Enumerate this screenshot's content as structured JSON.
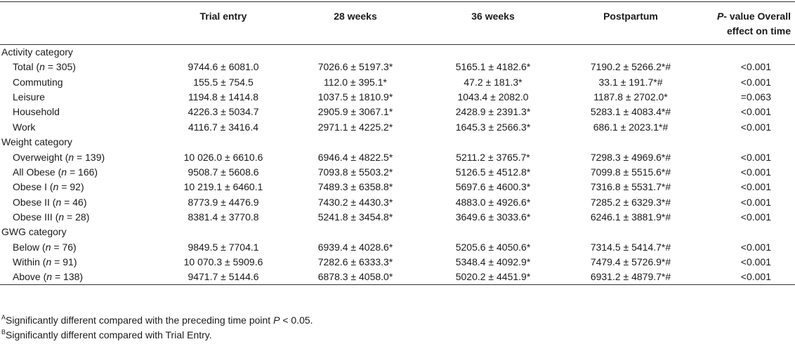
{
  "table": {
    "headers": [
      "",
      "Trial entry",
      "28 weeks",
      "36 weeks",
      "Postpartum",
      "P- value Overall effect on time"
    ],
    "p_header": {
      "italic": "P-",
      "rest": " value Overall effect on time"
    },
    "sections": [
      {
        "category": "Activity category",
        "rows": [
          {
            "label": "Total",
            "n": "305",
            "values": [
              "9744.6 ± 6081.0",
              "7026.6 ± 5197.3*",
              "5165.1 ± 4182.6*",
              "7190.2 ± 5266.2*#"
            ],
            "p": "<0.001"
          },
          {
            "label": "Commuting",
            "n": "",
            "values": [
              "155.5 ± 754.5",
              "112.0 ± 395.1*",
              "47.2 ± 181.3*",
              "33.1 ± 191.7*#"
            ],
            "p": "<0.001"
          },
          {
            "label": "Leisure",
            "n": "",
            "values": [
              "1194.8 ± 1414.8",
              "1037.5 ± 1810.9*",
              "1043.4 ± 2082.0",
              "1187.8 ± 2702.0*"
            ],
            "p": "=0.063"
          },
          {
            "label": "Household",
            "n": "",
            "values": [
              "4226.3 ± 5034.7",
              "2905.9 ± 3067.1*",
              "2428.9 ± 2391.3*",
              "5283.1 ± 4083.4*#"
            ],
            "p": "<0.001"
          },
          {
            "label": "Work",
            "n": "",
            "values": [
              "4116.7 ± 3416.4",
              "2971.1 ± 4225.2*",
              "1645.3 ± 2566.3*",
              "686.1 ± 2023.1*#"
            ],
            "p": "<0.001"
          }
        ]
      },
      {
        "category": "Weight category",
        "rows": [
          {
            "label": "Overweight",
            "n": "139",
            "values": [
              "10 026.0 ± 6610.6",
              "6946.4 ± 4822.5*",
              "5211.2 ± 3765.7*",
              "7298.3 ± 4969.6*#"
            ],
            "p": "<0.001"
          },
          {
            "label": "All Obese",
            "n": "166",
            "values": [
              "9508.7 ± 5608.6",
              "7093.8 ± 5503.2*",
              "5126.5 ± 4512.8*",
              "7099.8 ± 5515.6*#"
            ],
            "p": "<0.001"
          },
          {
            "label": "Obese I",
            "n": "92",
            "values": [
              "10 219.1 ± 6460.1",
              "7489.3 ± 6358.8*",
              "5697.6 ± 4600.3*",
              "7316.8 ± 5531.7*#"
            ],
            "p": "<0.001"
          },
          {
            "label": "Obese II",
            "n": "46",
            "values": [
              "8773.9 ± 4476.9",
              "7430.2 ± 4430.3*",
              "4883.0 ± 4926.6*",
              "7285.2 ± 6329.3*#"
            ],
            "p": "<0.001"
          },
          {
            "label": "Obese III",
            "n": "28",
            "values": [
              "8381.4 ± 3770.8",
              "5241.8 ± 3454.8*",
              "3649.6 ± 3033.6*",
              "6246.1 ± 3881.9*#"
            ],
            "p": "<0.001"
          }
        ]
      },
      {
        "category": "GWG category",
        "rows": [
          {
            "label": "Below",
            "n": "76",
            "values": [
              "9849.5 ± 7704.1",
              "6939.4 ± 4028.6*",
              "5205.6 ± 4050.6*",
              "7314.5 ± 5414.7*#"
            ],
            "p": "<0.001"
          },
          {
            "label": "Within",
            "n": "91",
            "values": [
              "10 070.3 ± 5909.6",
              "7282.6 ± 6333.3*",
              "5348.4 ± 4092.9*",
              "7479.4 ± 5726.9*#"
            ],
            "p": "<0.001"
          },
          {
            "label": "Above",
            "n": "138",
            "values": [
              "9471.7 ± 5144.6",
              "6878.3 ± 4058.0*",
              "5020.2 ± 4451.9*",
              "6931.2 ± 4879.7*#"
            ],
            "p": "<0.001"
          }
        ]
      }
    ]
  },
  "footnotes": [
    {
      "mark": "A",
      "text": "Significantly different compared with the preceding time point",
      "tail_italic": "P",
      "tail": " < 0.05."
    },
    {
      "mark": "B",
      "text": "Significantly different compared with Trial Entry.",
      "tail_italic": "",
      "tail": ""
    }
  ]
}
